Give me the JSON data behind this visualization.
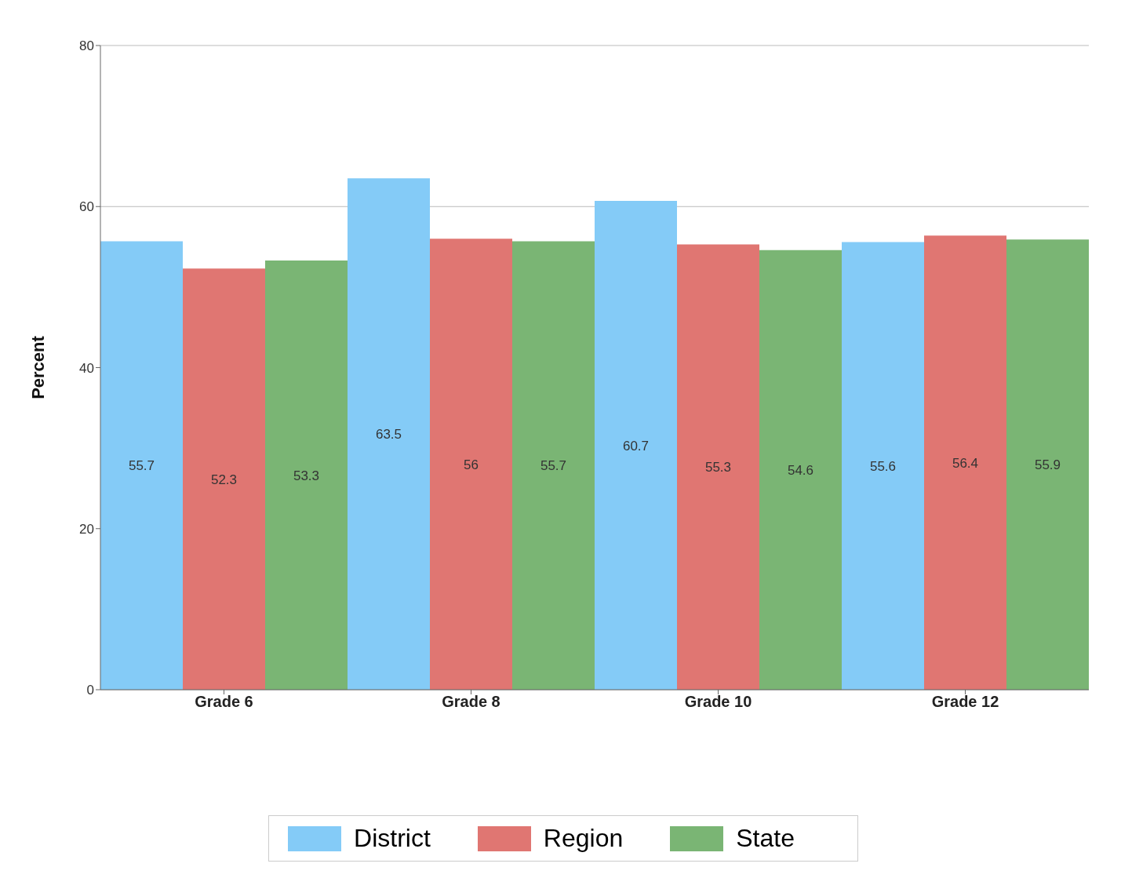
{
  "chart_data": {
    "type": "bar",
    "ylabel": "Percent",
    "categories": [
      "Grade 6",
      "Grade 8",
      "Grade 10",
      "Grade 12"
    ],
    "series": [
      {
        "name": "District",
        "color": "#84cbf7",
        "values": [
          55.7,
          63.5,
          60.7,
          55.6
        ]
      },
      {
        "name": "Region",
        "color": "#e07672",
        "values": [
          52.3,
          56,
          55.3,
          56.4
        ]
      },
      {
        "name": "State",
        "color": "#7ab574",
        "values": [
          53.3,
          55.7,
          54.6,
          55.9
        ]
      }
    ],
    "ylim": [
      0,
      80
    ],
    "yticks": [
      0,
      20,
      40,
      60,
      80
    ],
    "grid": "y",
    "legend": "bottom",
    "data_labels": true
  }
}
